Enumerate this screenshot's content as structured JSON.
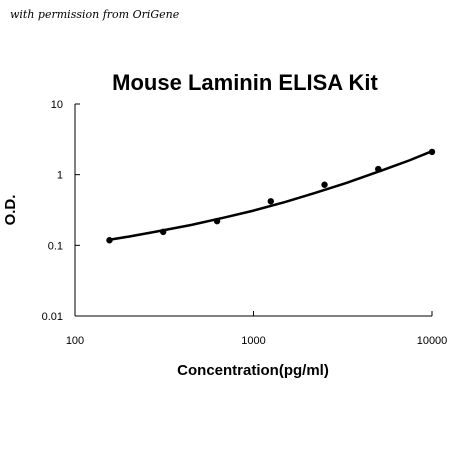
{
  "watermark": "with permission from OriGene",
  "chart_data": {
    "type": "scatter",
    "title": "Mouse Laminin ELISA Kit",
    "xlabel": "Concentration(pg/ml)",
    "ylabel": "O.D.",
    "x_scale": "log",
    "y_scale": "log",
    "xlim": [
      100,
      10000
    ],
    "ylim": [
      0.01,
      10
    ],
    "x_ticks": [
      "100",
      "1000",
      "10000"
    ],
    "y_ticks": [
      "10",
      "1",
      "0.1",
      "0.01"
    ],
    "grid": false,
    "legend": "none",
    "color": "#000000",
    "points": {
      "x": [
        156,
        312,
        625,
        1250,
        2500,
        5000,
        10000
      ],
      "y": [
        0.118,
        0.155,
        0.22,
        0.42,
        0.72,
        1.2,
        2.1
      ]
    },
    "fit_curve": {
      "x": [
        156,
        200,
        300,
        450,
        700,
        1000,
        1500,
        2200,
        3300,
        5000,
        7500,
        10000
      ],
      "y": [
        0.12,
        0.133,
        0.16,
        0.195,
        0.25,
        0.31,
        0.41,
        0.55,
        0.76,
        1.1,
        1.6,
        2.15
      ]
    }
  }
}
